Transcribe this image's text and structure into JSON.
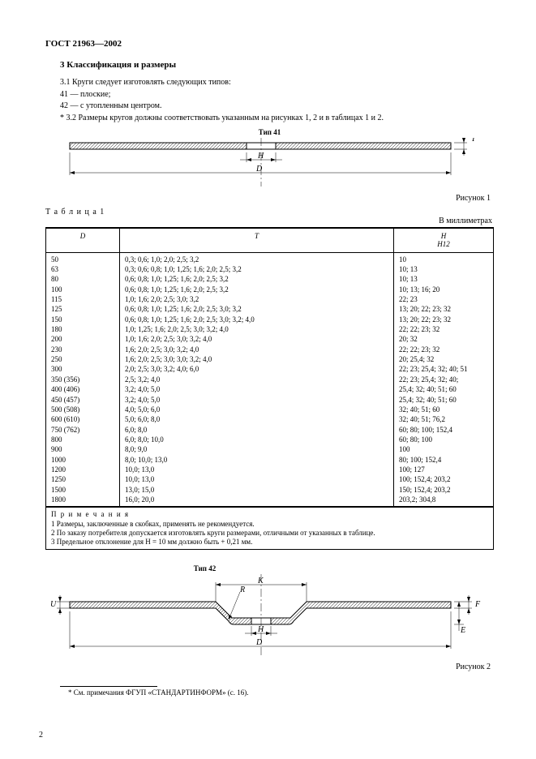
{
  "doc_id": "ГОСТ 21963—2002",
  "section_num_title": "3  Классификация и размеры",
  "p31": "3.1  Круги следует изготовлять следующих типов:",
  "p31a": "41 — плоские;",
  "p31b": "42 — с утопленным центром.",
  "p32": "* 3.2  Размеры кругов должны соответствовать указанным на рисунках 1, 2 и в таблицах 1 и 2.",
  "fig1_type": "Тип 41",
  "fig1_caption": "Рисунок 1",
  "fig1_dims": {
    "D": "D",
    "H": "H",
    "T": "T"
  },
  "table1_caption": "Т а б л и ц а 1",
  "units": "В миллиметрах",
  "table1_headers": {
    "c1": "D",
    "c2": "T",
    "c3": "H\nH12"
  },
  "table1_rows": [
    [
      "50",
      "0,3; 0,6; 1,0; 2,0; 2,5; 3,2",
      "10"
    ],
    [
      "63",
      "0,3; 0,6; 0,8; 1,0; 1,25; 1,6; 2,0; 2,5; 3,2",
      "10; 13"
    ],
    [
      "80",
      "0,6; 0,8; 1,0; 1,25; 1,6; 2,0; 2,5; 3,2",
      "10; 13"
    ],
    [
      "100",
      "0,6; 0,8; 1,0; 1,25; 1,6; 2,0; 2,5; 3,2",
      "10; 13; 16; 20"
    ],
    [
      "115",
      "1,0; 1,6; 2,0; 2,5; 3,0; 3,2",
      "22; 23"
    ],
    [
      "125",
      "0,6; 0,8; 1,0; 1,25; 1,6; 2,0; 2,5; 3,0; 3,2",
      "13; 20; 22; 23; 32"
    ],
    [
      "150",
      "0,6; 0,8; 1,0; 1,25; 1,6; 2,0; 2,5; 3,0; 3,2; 4,0",
      "13; 20; 22; 23; 32"
    ],
    [
      "180",
      "1,0; 1,25; 1,6; 2,0; 2,5; 3,0; 3,2; 4,0",
      "22; 22; 23; 32"
    ],
    [
      "200",
      "1,0; 1,6; 2,0; 2,5; 3,0; 3,2; 4,0",
      "20; 32"
    ],
    [
      "230",
      "1,6; 2,0; 2,5; 3,0; 3,2; 4,0",
      "22; 22; 23; 32"
    ],
    [
      "250",
      "1,6; 2,0; 2,5; 3,0; 3,0; 3,2; 4,0",
      "20; 25,4; 32"
    ],
    [
      "300",
      "2,0; 2,5; 3,0; 3,2; 4,0; 6,0",
      "22; 23; 25,4; 32; 40; 51"
    ],
    [
      "350 (356)",
      "2,5; 3,2; 4,0",
      "22; 23; 25,4; 32; 40;"
    ],
    [
      "400 (406)",
      "3,2; 4,0; 5,0",
      "25,4; 32; 40; 51; 60"
    ],
    [
      "450 (457)",
      "3,2; 4,0; 5,0",
      "25,4; 32; 40; 51; 60"
    ],
    [
      "500 (508)",
      "4,0; 5,0; 6,0",
      "32; 40; 51; 60"
    ],
    [
      "600 (610)",
      "5,0; 6,0; 8,0",
      "32; 40; 51; 76,2"
    ],
    [
      "750 (762)",
      "6,0; 8,0",
      "60; 80; 100; 152,4"
    ],
    [
      "800",
      "6,0; 8,0; 10,0",
      "60; 80; 100"
    ],
    [
      "900",
      "8,0; 9,0",
      "100"
    ],
    [
      "1000",
      "8,0; 10,0; 13,0",
      "80; 100; 152,4"
    ],
    [
      "1200",
      "10,0; 13,0",
      "100; 127"
    ],
    [
      "1250",
      "10,0; 13,0",
      "100; 152,4; 203,2"
    ],
    [
      "1500",
      "13,0; 15,0",
      "150; 152,4; 203,2"
    ],
    [
      "1800",
      "16,0; 20,0",
      "203,2; 304,8"
    ]
  ],
  "notes_title": "П р и м е ч а н и я",
  "note1": "1  Размеры, заключенные в скобках, применять не рекомендуется.",
  "note2": "2  По заказу потребителя допускается изготовлять круги размерами, отличными от указанных в таблице.",
  "note3": "3  Предельное отклонение для H = 10 мм должно быть + 0,21 мм.",
  "fig2_type": "Тип 42",
  "fig2_caption": "Рисунок 2",
  "fig2_dims": {
    "D": "D",
    "H": "H",
    "K": "K",
    "R": "R",
    "U": "U",
    "E": "E",
    "F": "F"
  },
  "footnote": "* См. примечания ФГУП «СТАНДАРТИНФОРМ» (с. 16).",
  "page_number": "2",
  "diagram_style": {
    "hatch_stroke": "#000000",
    "line_stroke": "#000000",
    "line_width": 1,
    "thin_line_width": 0.5,
    "background": "#ffffff"
  }
}
